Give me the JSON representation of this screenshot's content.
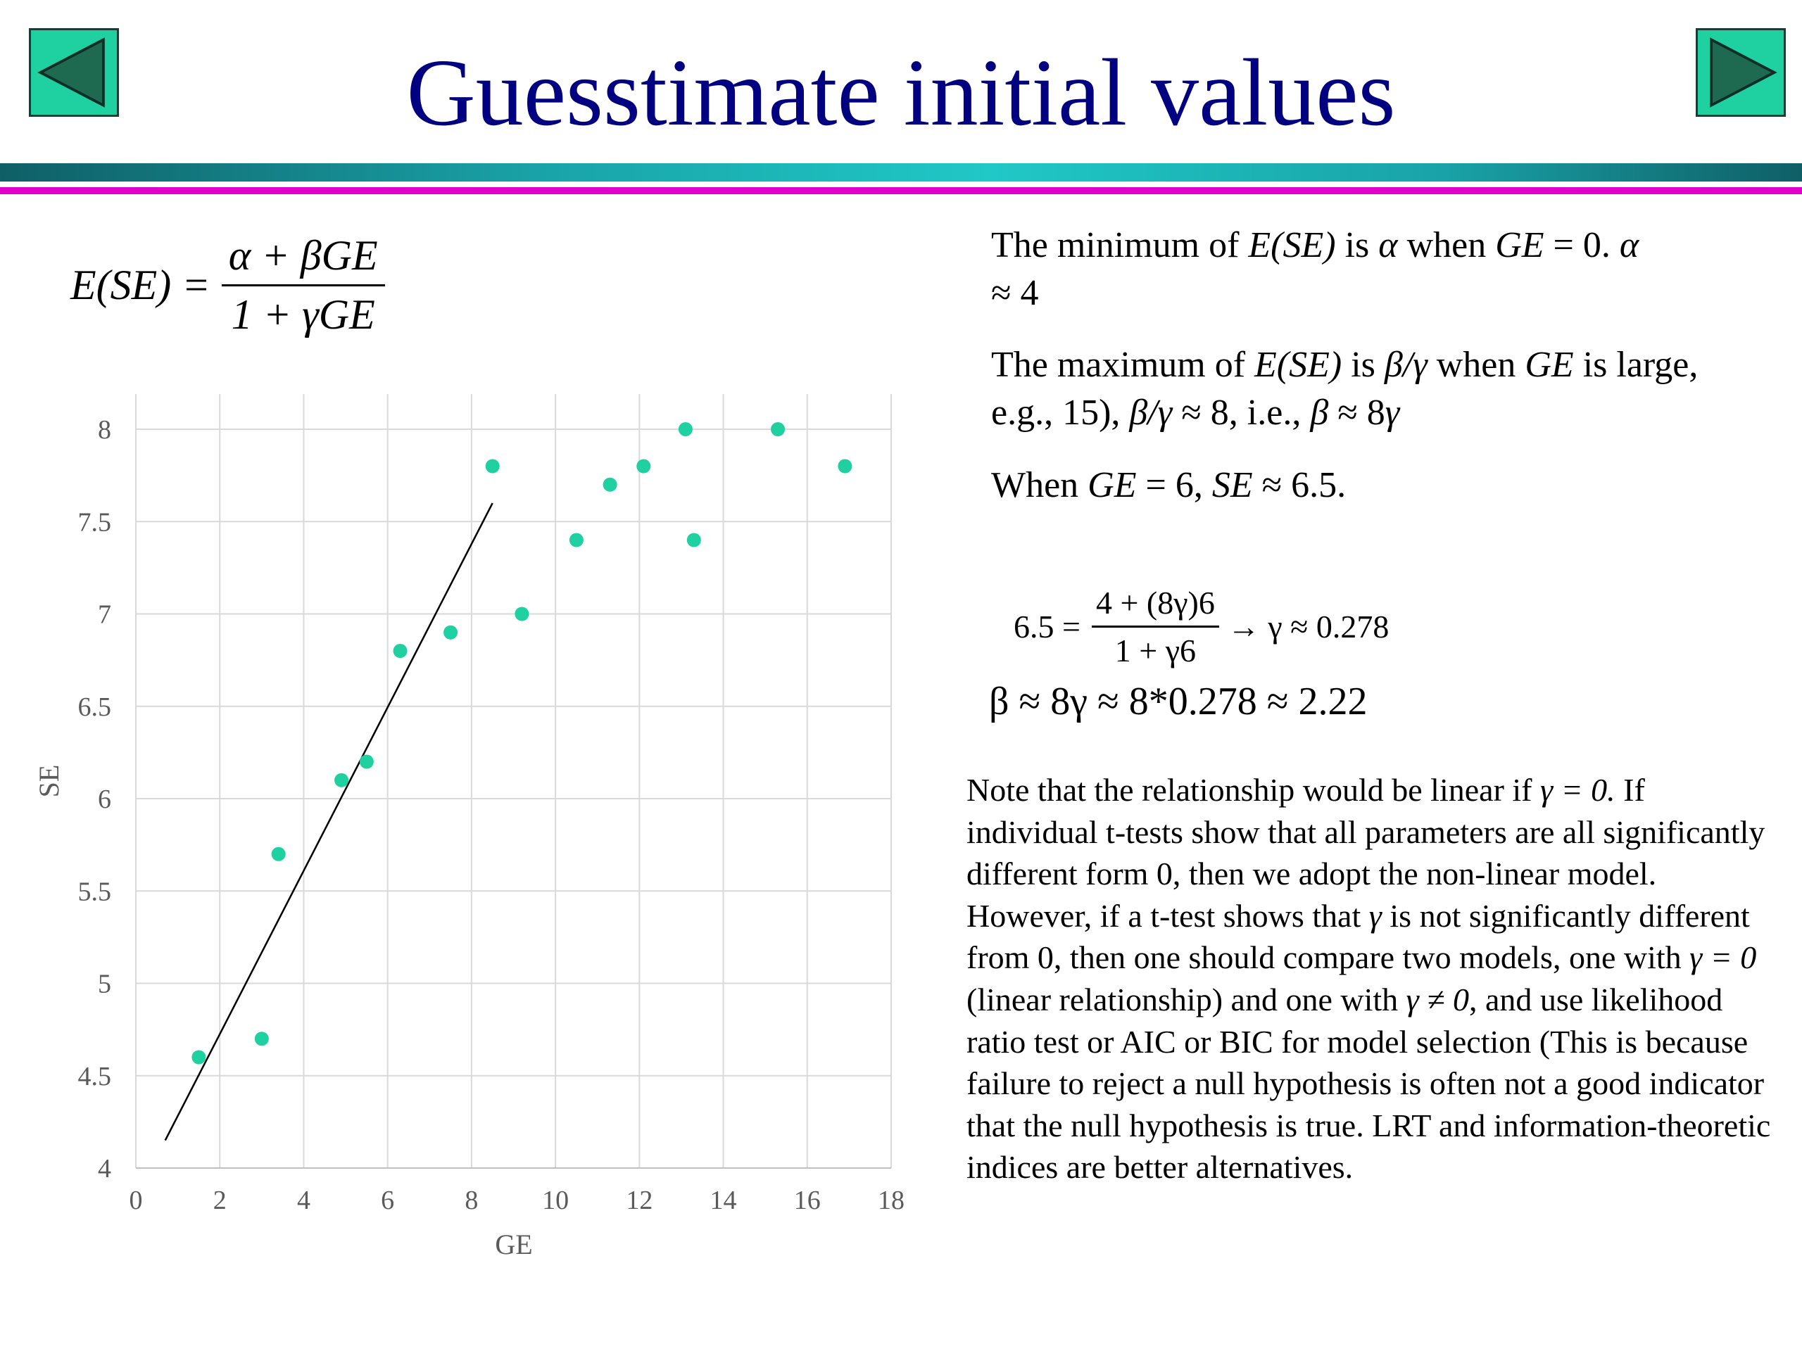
{
  "slide": {
    "title": "Guesstimate initial values",
    "nav": {
      "prev_icon": "triangle-left-icon",
      "next_icon": "triangle-right-icon"
    },
    "colors": {
      "title": "#000080",
      "button": "#1fd1a1",
      "point": "#1fd1a1",
      "rule_magenta": "#e000cc"
    }
  },
  "formula": {
    "lhs": "E(SE) =",
    "numerator": "α + βGE",
    "denominator": "1 + γGE"
  },
  "text": {
    "min_a": "The minimum of ",
    "min_b": "E(SE)",
    "min_c": " is ",
    "min_d": "α",
    "min_e": " when ",
    "min_f": "GE",
    "min_g": " = 0. ",
    "min_h": "α",
    "min_i": "≈ 4",
    "max_a": "The maximum of ",
    "max_b": "E(SE)",
    "max_c": " is ",
    "max_d": "β/γ",
    "max_e": " when ",
    "max_f": "GE",
    "max_g": " is large, e.g., 15), ",
    "max_h": "β/γ",
    "max_i": " ≈ 8, i.e., ",
    "max_j": "β",
    "max_k": " ≈ 8",
    "max_l": "γ",
    "when_a": "When ",
    "when_b": "GE",
    "when_c": " = 6, ",
    "when_d": "SE",
    "when_e": " ≈ 6.5."
  },
  "equation2": {
    "lhs": "6.5 =",
    "numerator": "4 + (8γ)6",
    "denominator": "1 + γ6",
    "rhs": "→ γ ≈ 0.278"
  },
  "equation3": "β ≈ 8γ ≈ 8*0.278 ≈ 2.22",
  "note": {
    "p1": "Note that the relationship would be linear if ",
    "p2": "γ = 0.",
    "p3": " If individual t-tests show that all parameters are all significantly different form 0, then we adopt the non-linear model. However, if a t-test shows that ",
    "p4": "γ",
    "p5": " is not significantly different from 0, then one should compare two models, one with ",
    "p6": "γ = 0",
    "p7": " (linear relationship) and one with ",
    "p8": "γ ≠ 0",
    "p9": ", and use likelihood ratio test or AIC or BIC for model selection (This is because failure to reject a null hypothesis is often not a good indicator that the null hypothesis is true. LRT and information-theoretic indices are better alternatives."
  },
  "chart_data": {
    "type": "scatter",
    "xlabel": "GE",
    "ylabel": "SE",
    "xlim": [
      0,
      18
    ],
    "ylim": [
      4,
      8
    ],
    "xticks": [
      0,
      2,
      4,
      6,
      8,
      10,
      12,
      14,
      16,
      18
    ],
    "yticks": [
      4,
      4.5,
      5,
      5.5,
      6,
      6.5,
      7,
      7.5,
      8
    ],
    "grid": true,
    "points": [
      [
        1.5,
        4.6
      ],
      [
        3.0,
        4.7
      ],
      [
        3.4,
        5.7
      ],
      [
        4.9,
        6.1
      ],
      [
        5.5,
        6.2
      ],
      [
        6.3,
        6.8
      ],
      [
        7.5,
        6.9
      ],
      [
        8.5,
        7.8
      ],
      [
        9.2,
        7.0
      ],
      [
        10.5,
        7.4
      ],
      [
        11.3,
        7.7
      ],
      [
        12.1,
        7.8
      ],
      [
        13.1,
        8.0
      ],
      [
        13.3,
        7.4
      ],
      [
        15.3,
        8.0
      ],
      [
        16.9,
        7.8
      ]
    ],
    "trend_line": {
      "from": [
        0.7,
        4.15
      ],
      "to": [
        8.5,
        7.6
      ]
    }
  }
}
